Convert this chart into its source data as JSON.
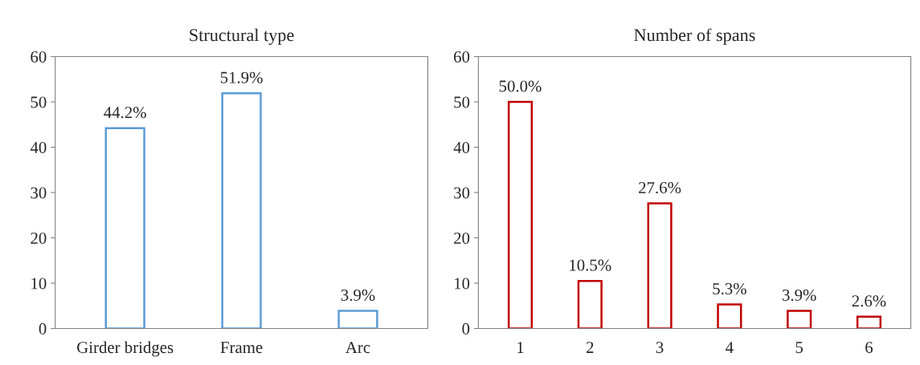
{
  "chart_data": [
    {
      "type": "bar",
      "title": "Structural type",
      "categories": [
        "Girder bridges",
        "Frame",
        "Arc"
      ],
      "values": [
        44.2,
        51.9,
        3.9
      ],
      "color": "#5b9bd5",
      "value_labels": [
        "44.2%",
        "51.9%",
        "3.9%"
      ],
      "ylim": [
        0,
        60
      ],
      "yticks": [
        0,
        10,
        20,
        30,
        40,
        50,
        60
      ],
      "grid": false,
      "legend": false
    },
    {
      "type": "bar",
      "title": "Number of spans",
      "categories": [
        "1",
        "2",
        "3",
        "4",
        "5",
        "6"
      ],
      "values": [
        50.0,
        10.5,
        27.6,
        5.3,
        3.9,
        2.6
      ],
      "color": "#c00000",
      "value_labels": [
        "50.0%",
        "10.5%",
        "27.6%",
        "5.3%",
        "3.9%",
        "2.6%"
      ],
      "ylim": [
        0,
        60
      ],
      "yticks": [
        0,
        10,
        20,
        30,
        40,
        50,
        60
      ],
      "grid": false,
      "legend": false
    }
  ]
}
